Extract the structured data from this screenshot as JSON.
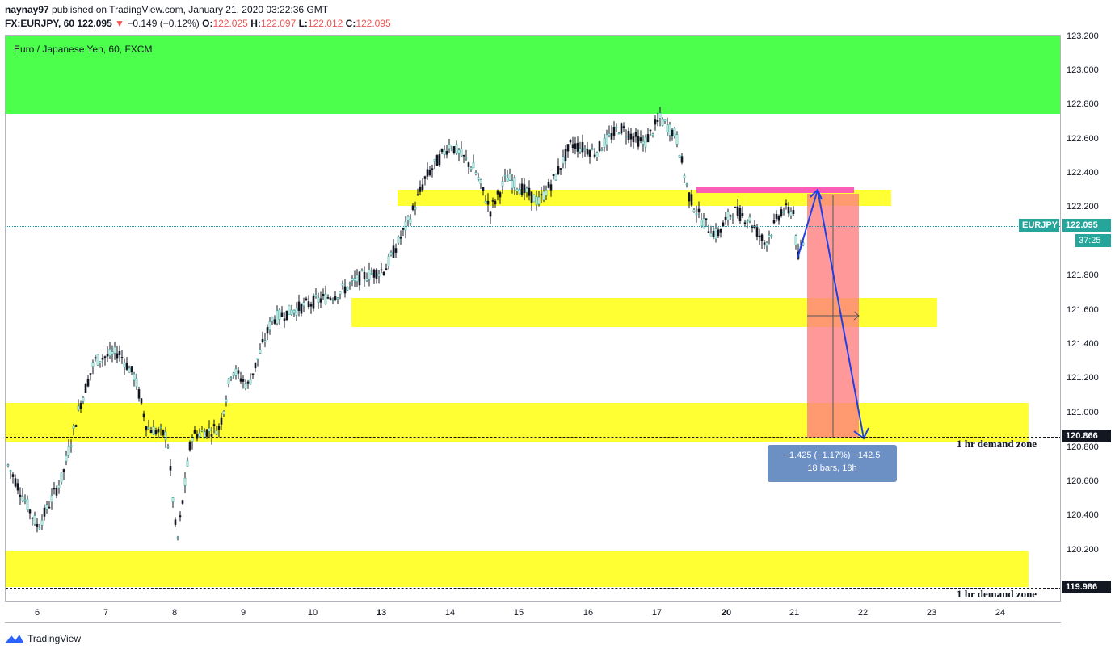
{
  "header": {
    "author": "naynay97",
    "published_text": "published on TradingView.com, January 21, 2020 03:22:36 GMT",
    "symbol_line": "FX:EURJPY, 60",
    "last_price": "122.095",
    "change_arrow": "▼",
    "change": "−0.149 (−0.12%)",
    "open_label": "O:",
    "open": "122.025",
    "high_label": "H:",
    "high": "122.097",
    "low_label": "L:",
    "low": "122.012",
    "close_label": "C:",
    "close": "122.095"
  },
  "chart": {
    "title": "Euro / Japanese Yen, 60, FXCM",
    "price_ticks": [
      "123.200",
      "123.000",
      "122.800",
      "122.600",
      "122.400",
      "122.200",
      "121.800",
      "121.600",
      "121.400",
      "121.200",
      "121.000",
      "120.800",
      "120.600",
      "120.400",
      "120.200"
    ],
    "time_ticks": [
      "6",
      "7",
      "8",
      "9",
      "10",
      "13",
      "14",
      "15",
      "16",
      "17",
      "20",
      "21",
      "22",
      "23",
      "24"
    ],
    "time_ticks_bold": [
      "13",
      "20"
    ],
    "zone_labels": [
      "1 hr demand zone",
      "1 hr demand zone"
    ],
    "price_tags": {
      "symbol": "EURJPY",
      "current": "122.095",
      "countdown": "37:25",
      "level_a": "120.866",
      "level_b": "119.986"
    },
    "measure": {
      "line1": "−1.425 (−1.17%) −142.5",
      "line2": "18 bars, 18h"
    },
    "colors": {
      "supply_zone": "#4cff4c",
      "demand_zone": "#ffff33",
      "short_risk": "#ff5cb8",
      "short_target": "#ff8080",
      "arrow": "#1e40e6",
      "up_candle": "#26a69a",
      "down_candle": "#131722"
    }
  },
  "footer": {
    "brand": "TradingView"
  }
}
